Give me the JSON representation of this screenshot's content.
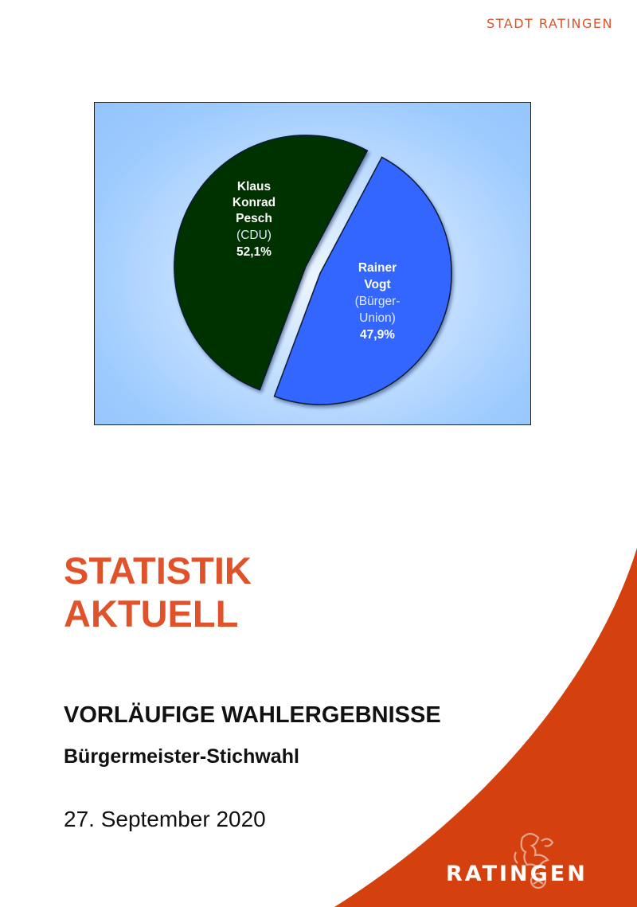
{
  "header": {
    "brand": "STADT RATINGEN"
  },
  "chart_data": {
    "type": "pie",
    "slices": [
      {
        "name": "Klaus Konrad Pesch",
        "party": "(CDU)",
        "value": 52.1,
        "value_label": "52,1%",
        "color": "#003300"
      },
      {
        "name": "Rainer Vogt",
        "party": "(Bürger-Union)",
        "value": 47.9,
        "value_label": "47,9%",
        "color": "#3366ff"
      }
    ],
    "labels": {
      "pesch": {
        "line1": "Klaus",
        "line2": "Konrad",
        "line3": "Pesch",
        "party": "(CDU)",
        "pct": "52,1%"
      },
      "vogt": {
        "line1": "Rainer",
        "line2": "Vogt",
        "party1": "(Bürger-",
        "party2": "Union)",
        "pct": "47,9%"
      }
    },
    "background": "#99ccff"
  },
  "title": {
    "line1": "STATISTIK",
    "line2": "AKTUELL"
  },
  "subtitle": "VORLÄUFIGE WAHLERGEBNISSE",
  "subtitle2": "Bürgermeister-Stichwahl",
  "date": "27. September 2020",
  "logo": {
    "text": "RATINGEN"
  },
  "colors": {
    "accent": "#e0522a",
    "swoosh": "#d4410f"
  }
}
